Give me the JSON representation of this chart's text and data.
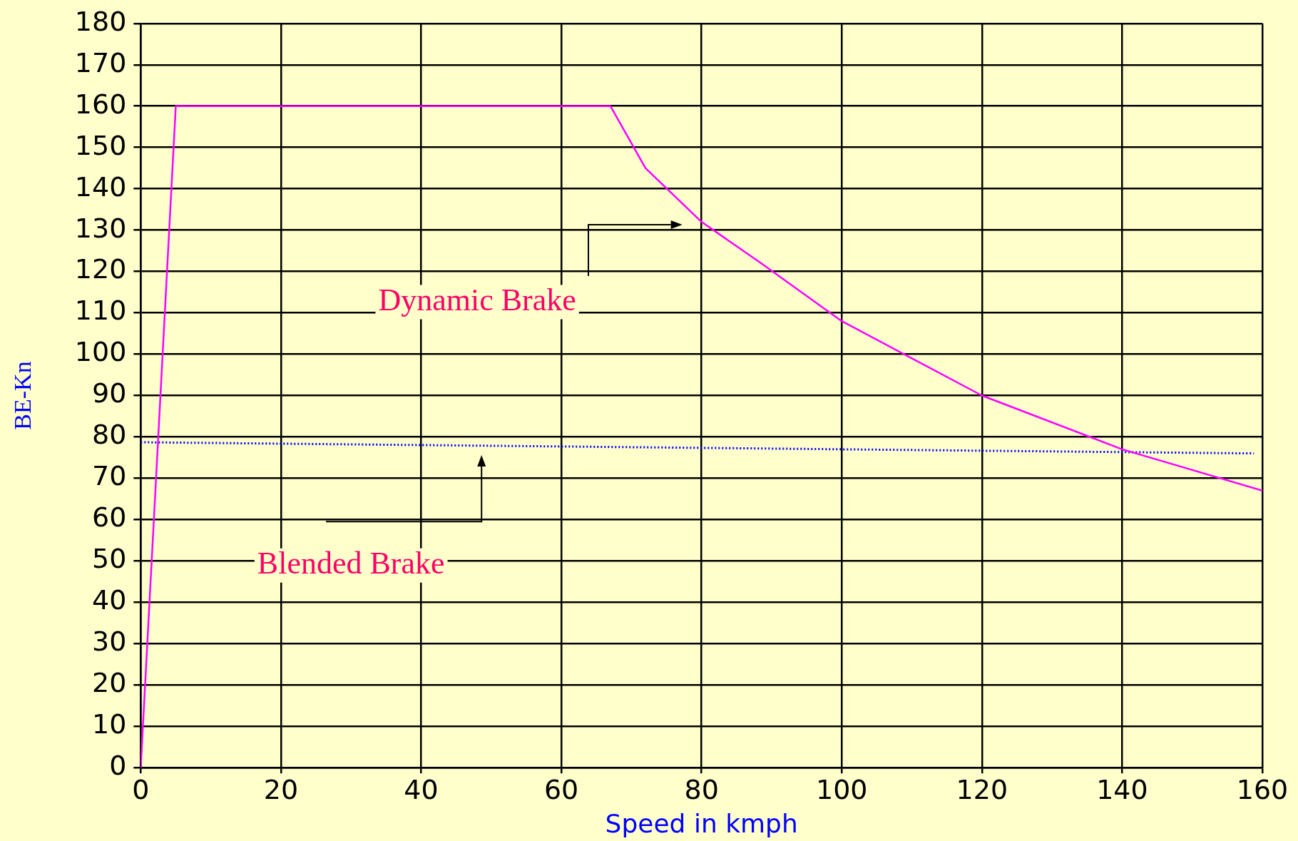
{
  "chart_data": {
    "type": "line",
    "xlabel": "Speed in kmph",
    "ylabel": "BE-Kn",
    "xlim": [
      0,
      160
    ],
    "xticks": [
      0,
      20,
      40,
      60,
      80,
      100,
      120,
      140,
      160
    ],
    "ylim": [
      0,
      180
    ],
    "yticks": [
      0,
      10,
      20,
      30,
      40,
      50,
      60,
      70,
      80,
      90,
      100,
      110,
      120,
      130,
      140,
      150,
      160,
      170,
      180
    ],
    "grid": true,
    "legend": false,
    "marker": "none",
    "series": [
      {
        "color": "#ff00ff",
        "line_style": "solid",
        "x": [
          0,
          5,
          67,
          72,
          80,
          88.5,
          100,
          110,
          120,
          140,
          160
        ],
        "values": [
          0,
          160,
          160,
          145,
          132,
          122,
          108,
          99,
          90,
          77,
          67
        ]
      },
      {
        "color": "#0000ff",
        "line_style": "dotted",
        "x": [
          0,
          158.8
        ],
        "values": [
          78.7,
          76
        ]
      }
    ],
    "annotations": [
      "Dynamic Brake",
      "Blended Brake"
    ]
  }
}
